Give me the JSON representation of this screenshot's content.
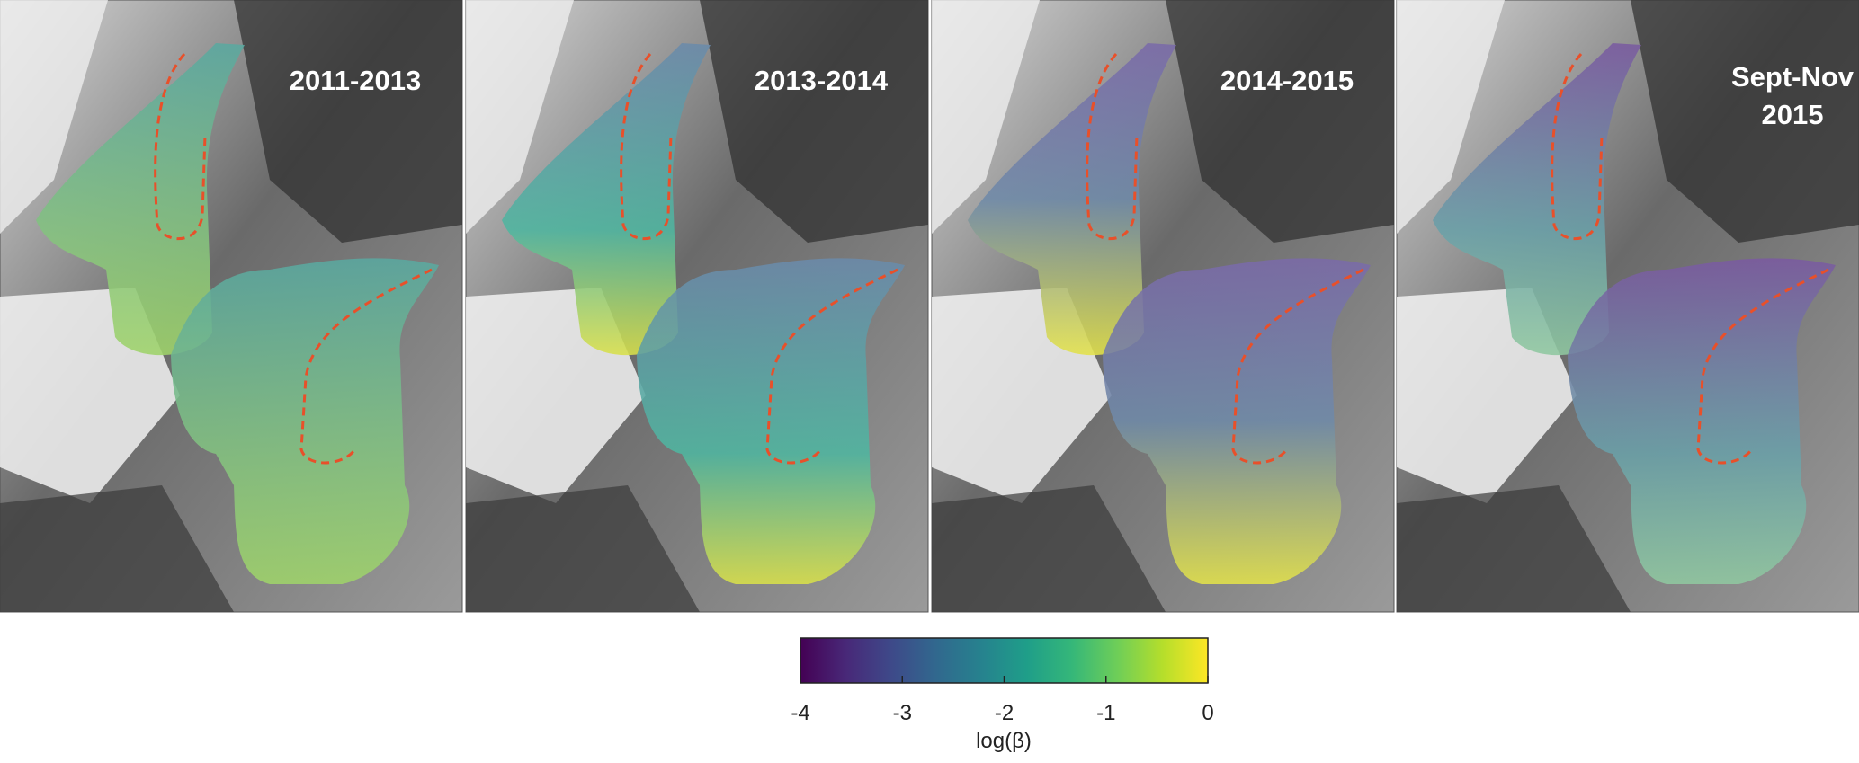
{
  "panels": [
    {
      "label": [
        "2011-2013"
      ]
    },
    {
      "label": [
        "2013-2014"
      ]
    },
    {
      "label": [
        "2014-2015"
      ]
    },
    {
      "label": [
        "Sept-Nov",
        "2015"
      ]
    }
  ],
  "colorbar": {
    "title": "log(β)",
    "lim": [
      -4,
      0
    ],
    "ticks": [
      -4,
      -3,
      -2,
      -1,
      0
    ],
    "colors": [
      "#440154",
      "#482878",
      "#3e4989",
      "#31688e",
      "#26828e",
      "#1f9e89",
      "#35b779",
      "#6ece58",
      "#b5de2b",
      "#fde725"
    ]
  }
}
